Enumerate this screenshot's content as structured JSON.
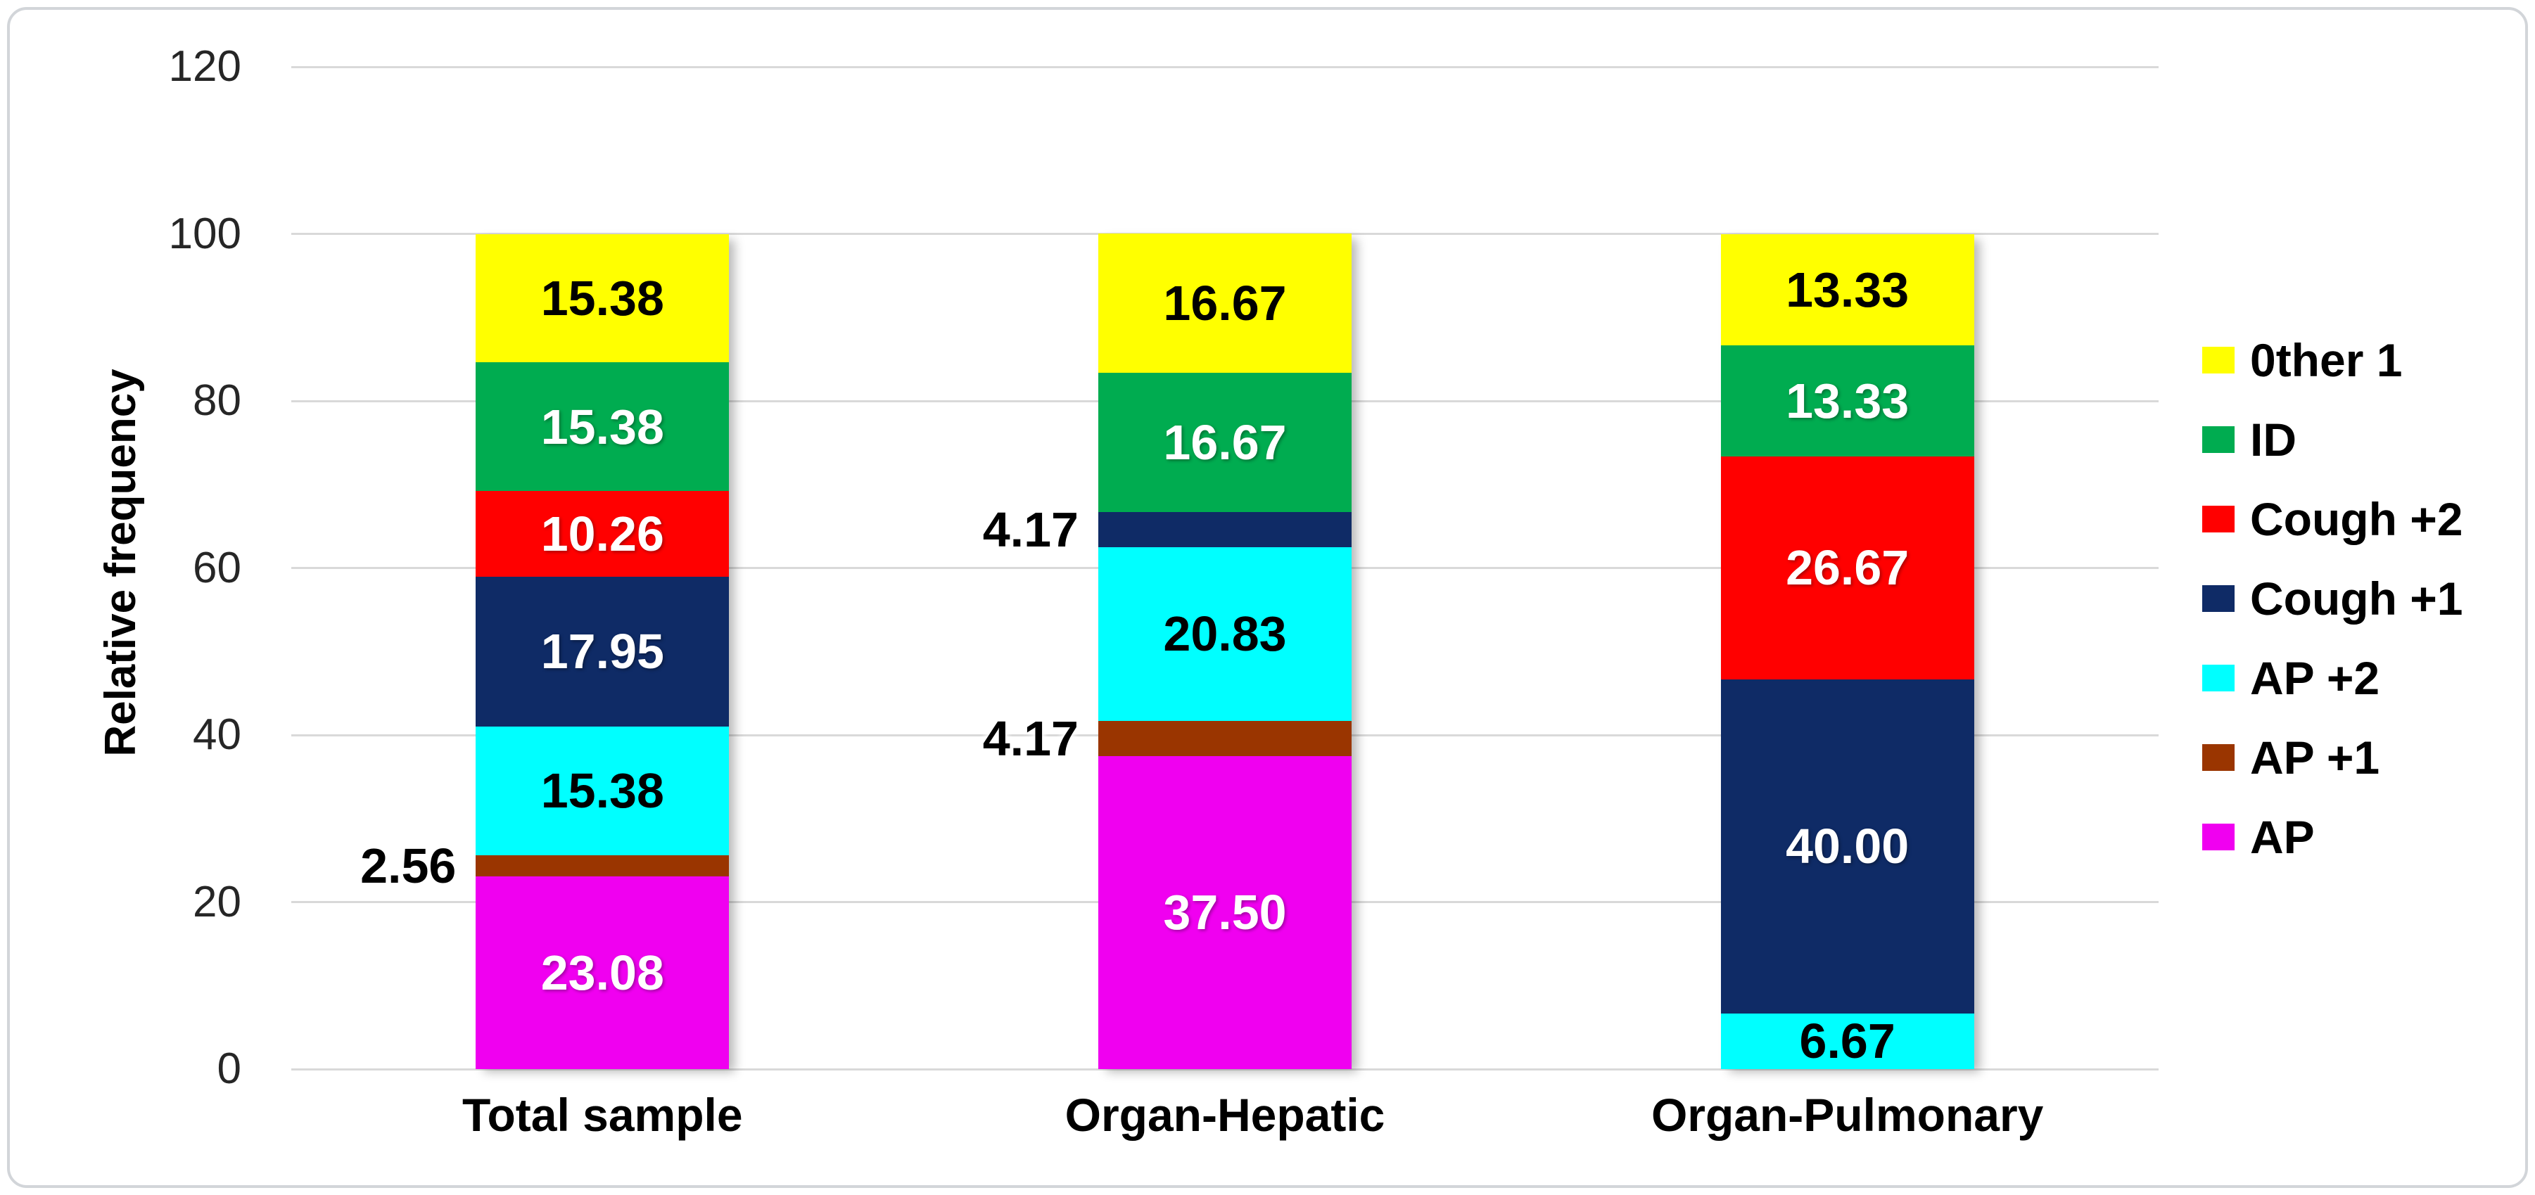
{
  "figure": {
    "background": "#ffffff",
    "border_color": "#d2d5d9"
  },
  "chart_data": {
    "type": "bar",
    "stacked": true,
    "title": "",
    "xlabel": "",
    "ylabel": "Relative frequency",
    "ylim": [
      0,
      120
    ],
    "yticks": [
      0,
      20,
      40,
      60,
      80,
      100,
      120
    ],
    "grid": "horizontal",
    "gridline_color": "#d9d9d9",
    "legend_position": "right",
    "label_decimals": 2,
    "outside_label_threshold": 5,
    "categories": [
      "Total sample",
      "Organ-Hepatic",
      "Organ-Pulmonary"
    ],
    "series": [
      {
        "name": "AP",
        "color": "#F000F0",
        "label_color": "#ffffff",
        "values": [
          23.08,
          37.5,
          0
        ]
      },
      {
        "name": "AP +1",
        "color": "#9A3500",
        "label_color": "#ffffff",
        "values": [
          2.56,
          4.17,
          0
        ]
      },
      {
        "name": "AP +2",
        "color": "#00FFFF",
        "label_color": "#000000",
        "values": [
          15.38,
          20.83,
          6.67
        ]
      },
      {
        "name": "Cough +1",
        "color": "#0F2B66",
        "label_color": "#ffffff",
        "values": [
          17.95,
          4.17,
          40.0
        ]
      },
      {
        "name": "Cough +2",
        "color": "#FF0000",
        "label_color": "#ffffff",
        "values": [
          10.26,
          0,
          26.67
        ]
      },
      {
        "name": "ID",
        "color": "#00AC50",
        "label_color": "#ffffff",
        "values": [
          15.38,
          16.67,
          13.33
        ]
      },
      {
        "name": "0ther 1",
        "color": "#FFFF00",
        "label_color": "#000000",
        "values": [
          15.38,
          16.67,
          13.33
        ]
      }
    ],
    "legend_entries": [
      "0ther 1",
      "ID",
      "Cough +2",
      "Cough +1",
      "AP +2",
      "AP +1",
      "AP"
    ]
  }
}
